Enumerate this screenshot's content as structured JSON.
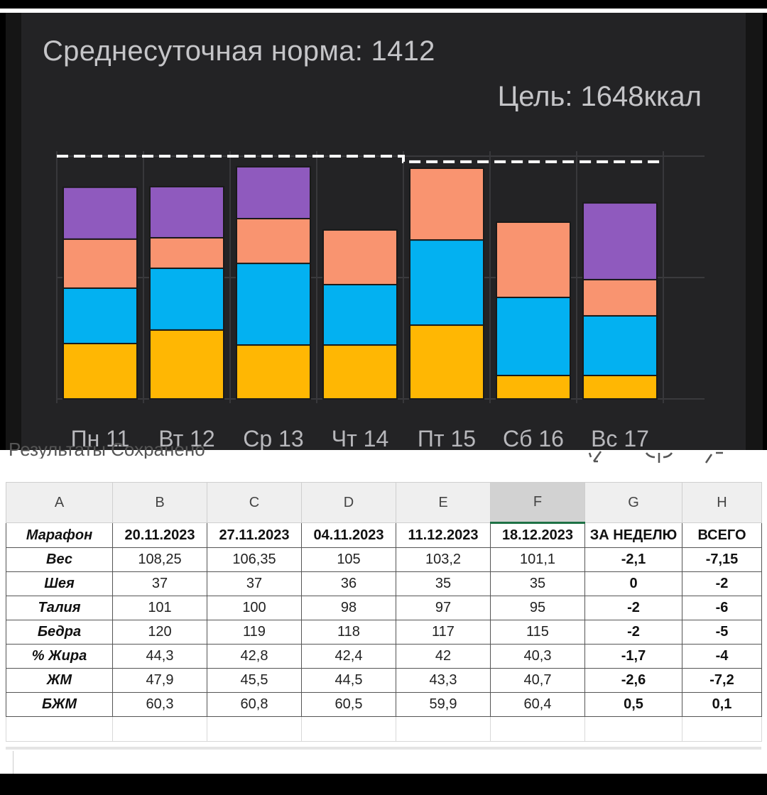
{
  "chart_data": {
    "type": "bar",
    "stacked": true,
    "title": "Среднесуточная норма: 1412",
    "subtitle": "Цель: 1648ккал",
    "xlabel": "",
    "ylabel": "",
    "categories": [
      "Пн 11",
      "Вт 12",
      "Ср 13",
      "Чт 14",
      "Пт 15",
      "Сб 16",
      "Вс 17"
    ],
    "series": [
      {
        "name": "segment-1",
        "color": "#FFB703",
        "values": [
          376,
          468,
          366,
          366,
          501,
          159,
          159
        ]
      },
      {
        "name": "segment-2",
        "color": "#03B1F1",
        "values": [
          376,
          419,
          554,
          410,
          578,
          530,
          405
        ]
      },
      {
        "name": "segment-3",
        "color": "#F99470",
        "values": [
          333,
          207,
          304,
          371,
          487,
          511,
          246
        ]
      },
      {
        "name": "segment-4",
        "color": "#8F5ABE",
        "values": [
          352,
          347,
          352,
          0,
          0,
          0,
          521
        ]
      }
    ],
    "totals": [
      1437,
      1441,
      1576,
      1147,
      1566,
      1200,
      1331
    ],
    "goal_line": {
      "style": "dashed",
      "color": "#FFFFFF",
      "values": [
        1648,
        1648,
        1648,
        1648,
        1610,
        1610,
        1610
      ]
    },
    "ylim": [
      0,
      1700
    ],
    "grid": true,
    "legend": "none"
  },
  "chart": {
    "title": "Среднесуточная норма: 1412",
    "goal": "Цель: 1648ккал",
    "background": "#232325"
  },
  "sheet": {
    "status_text": "Результаты   Сохранено",
    "toolbar_icons": [
      "pen-icon",
      "split-icon",
      "function-icon"
    ],
    "column_letters": [
      "A",
      "B",
      "C",
      "D",
      "E",
      "F",
      "G",
      "H"
    ],
    "selected_column": "F",
    "header_row": [
      "Марафон",
      "20.11.2023",
      "27.11.2023",
      "04.11.2023",
      "11.12.2023",
      "18.12.2023",
      "ЗА НЕДЕЛЮ",
      "ВСЕГО"
    ],
    "rows": [
      [
        "Вес",
        "108,25",
        "106,35",
        "105",
        "103,2",
        "101,1",
        "-2,1",
        "-7,15"
      ],
      [
        "Шея",
        "37",
        "37",
        "36",
        "35",
        "35",
        "0",
        "-2"
      ],
      [
        "Талия",
        "101",
        "100",
        "98",
        "97",
        "95",
        "-2",
        "-6"
      ],
      [
        "Бедра",
        "120",
        "119",
        "118",
        "117",
        "115",
        "-2",
        "-5"
      ],
      [
        "% Жира",
        "44,3",
        "42,8",
        "42,4",
        "42",
        "40,3",
        "-1,7",
        "-4"
      ],
      [
        "ЖМ",
        "47,9",
        "45,5",
        "44,5",
        "43,3",
        "40,7",
        "-2,6",
        "-7,2"
      ],
      [
        "БЖМ",
        "60,3",
        "60,8",
        "60,5",
        "59,9",
        "60,4",
        "0,5",
        "0,1"
      ]
    ]
  }
}
